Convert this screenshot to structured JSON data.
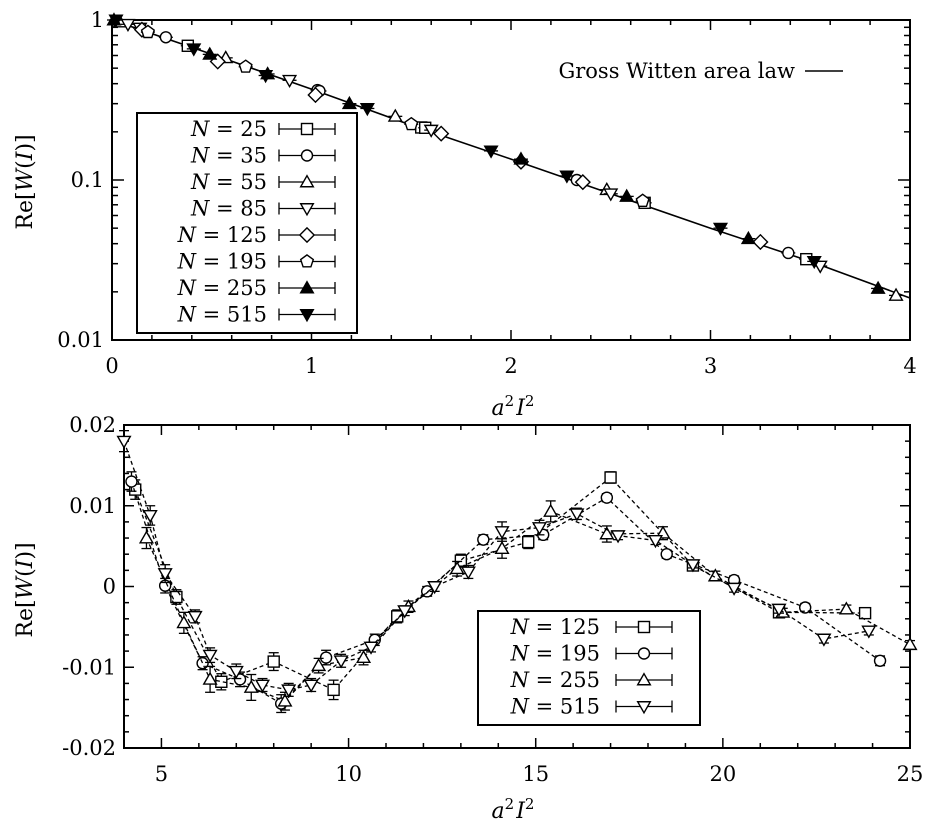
{
  "chart_data": [
    {
      "type": "scatter",
      "log_y": true,
      "xlabel_parts": {
        "base": "a",
        "exp1": "2",
        "mid": "I",
        "exp2": "2"
      },
      "ylabel_parts": {
        "pre": "Re[",
        "italic1": "W",
        "mid": "(",
        "italic2": "I",
        "post": ")]"
      },
      "xlim": [
        0,
        4
      ],
      "ylim": [
        0.01,
        1
      ],
      "x_ticks": [
        "0",
        "1",
        "2",
        "3",
        "4"
      ],
      "x_tick_values": [
        0,
        1,
        2,
        3,
        4
      ],
      "y_ticks": [
        "0.01",
        "0.1",
        "1"
      ],
      "y_tick_values": [
        0.01,
        0.1,
        1
      ],
      "fit": {
        "label": "Gross Witten area law",
        "legend_position": "top-right",
        "x": [
          0,
          0.5,
          1,
          1.5,
          2,
          2.5,
          3,
          3.5,
          4
        ],
        "y": [
          1.0,
          0.61,
          0.37,
          0.22,
          0.135,
          0.082,
          0.05,
          0.031,
          0.0183
        ]
      },
      "legend_position": "bottom-left",
      "series": [
        {
          "name": "N = 25",
          "label_n": "25",
          "marker": "square",
          "x": [
            0.38,
            1.55,
            1.57,
            2.67,
            3.48
          ],
          "y": [
            0.69,
            0.213,
            0.212,
            0.072,
            0.032
          ]
        },
        {
          "name": "N = 35",
          "label_n": "35",
          "marker": "circle",
          "x": [
            0.27,
            1.03,
            1.04,
            2.33,
            3.39
          ],
          "y": [
            0.78,
            0.365,
            0.36,
            0.1,
            0.035
          ]
        },
        {
          "name": "N = 55",
          "label_n": "55",
          "marker": "triangle-up",
          "x": [
            0.04,
            0.57,
            1.42,
            2.48,
            3.93
          ],
          "y": [
            0.97,
            0.58,
            0.25,
            0.087,
            0.019
          ]
        },
        {
          "name": "N = 85",
          "label_n": "85",
          "marker": "triangle-down",
          "x": [
            0.08,
            0.14,
            0.89,
            1.6,
            2.5,
            3.55
          ],
          "y": [
            0.94,
            0.89,
            0.42,
            0.205,
            0.082,
            0.029
          ]
        },
        {
          "name": "N = 125",
          "label_n": "125",
          "marker": "diamond",
          "x": [
            0.15,
            0.53,
            1.02,
            1.65,
            2.05,
            2.36,
            3.25
          ],
          "y": [
            0.87,
            0.55,
            0.34,
            0.195,
            0.13,
            0.097,
            0.041
          ]
        },
        {
          "name": "N = 195",
          "label_n": "195",
          "marker": "pentagon",
          "x": [
            0.18,
            0.67,
            1.5,
            2.66
          ],
          "y": [
            0.84,
            0.51,
            0.223,
            0.074
          ]
        },
        {
          "name": "N = 255",
          "label_n": "255",
          "marker": "filled-triangle-up",
          "x": [
            0.01,
            0.49,
            0.78,
            1.19,
            2.05,
            2.58,
            3.19,
            3.84
          ],
          "y": [
            1.0,
            0.61,
            0.46,
            0.3,
            0.135,
            0.079,
            0.043,
            0.021
          ]
        },
        {
          "name": "N = 515",
          "label_n": "515",
          "marker": "filled-triangle-down",
          "x": [
            0.02,
            0.41,
            0.77,
            1.28,
            1.9,
            2.28,
            3.05,
            3.52
          ],
          "y": [
            1.0,
            0.66,
            0.45,
            0.28,
            0.152,
            0.106,
            0.05,
            0.031
          ]
        }
      ]
    },
    {
      "type": "line",
      "xlabel_parts": {
        "base": "a",
        "exp1": "2",
        "mid": "I",
        "exp2": "2"
      },
      "ylabel_parts": {
        "pre": "Re[",
        "italic1": "W",
        "mid": "(",
        "italic2": "I",
        "post": ")]"
      },
      "xlim": [
        4,
        25
      ],
      "ylim": [
        -0.02,
        0.02
      ],
      "x_ticks": [
        "5",
        "10",
        "15",
        "20",
        "25"
      ],
      "x_tick_values": [
        5,
        10,
        15,
        20,
        25
      ],
      "y_ticks": [
        "-0.02",
        "-0.01",
        "0",
        "0.01",
        "0.02"
      ],
      "y_tick_values": [
        -0.02,
        -0.01,
        0,
        0.01,
        0.02
      ],
      "legend_position": "bottom-right",
      "series": [
        {
          "name": "N = 125",
          "label_n": "125",
          "marker": "square",
          "x": [
            4.3,
            5.4,
            6.6,
            8.0,
            9.6,
            11.3,
            13.0,
            14.8,
            17.0,
            19.2,
            21.5,
            23.8
          ],
          "y": [
            0.012,
            -0.0013,
            -0.0118,
            -0.0093,
            -0.0128,
            -0.0037,
            0.0032,
            0.0055,
            0.0135,
            0.0026,
            -0.0032,
            -0.0033
          ],
          "err": [
            0.0012,
            0.0009,
            0.001,
            0.0011,
            0.0012,
            0.0008,
            0.0008,
            0.0008,
            0.0007,
            0.0005,
            0.0006,
            0.0006
          ]
        },
        {
          "name": "N = 195",
          "label_n": "195",
          "marker": "circle",
          "x": [
            4.2,
            5.1,
            6.1,
            7.1,
            8.2,
            9.4,
            10.7,
            12.1,
            13.6,
            15.2,
            16.9,
            18.5,
            20.3,
            22.2,
            24.2
          ],
          "y": [
            0.013,
            0.0001,
            -0.0095,
            -0.0115,
            -0.0145,
            -0.0088,
            -0.0066,
            -0.0006,
            0.0058,
            0.0064,
            0.011,
            0.004,
            0.0008,
            -0.0026,
            -0.0092
          ],
          "err": [
            0.0012,
            0.0009,
            0.0008,
            0.0009,
            0.0011,
            0.0009,
            0.0007,
            0.0006,
            0.0006,
            0.0006,
            0.0005,
            0.0005,
            0.0005,
            0.0005,
            0.0006
          ]
        },
        {
          "name": "N = 255",
          "label_n": "255",
          "marker": "triangle-up",
          "x": [
            4.6,
            5.6,
            6.3,
            7.4,
            8.3,
            9.2,
            10.4,
            11.6,
            12.9,
            14.1,
            15.4,
            16.9,
            18.4,
            19.8,
            21.6,
            23.3,
            25.0
          ],
          "y": [
            0.006,
            -0.0045,
            -0.0115,
            -0.0125,
            -0.0142,
            -0.0098,
            -0.0088,
            -0.0025,
            0.0022,
            0.0047,
            0.0093,
            0.0065,
            0.0066,
            0.0013,
            -0.0032,
            -0.0028,
            -0.0072
          ],
          "err": [
            0.0013,
            0.0013,
            0.0016,
            0.0016,
            0.0011,
            0.0009,
            0.0009,
            0.0007,
            0.0009,
            0.0012,
            0.0013,
            0.001,
            0.0008,
            0.0006,
            0.0005,
            0.0005,
            0.0005
          ]
        },
        {
          "name": "N = 515",
          "label_n": "515",
          "marker": "triangle-down",
          "x": [
            4.0,
            4.7,
            5.1,
            5.9,
            6.3,
            7.0,
            7.7,
            8.4,
            9.0,
            9.8,
            10.6,
            11.5,
            12.3,
            13.2,
            14.1,
            15.1,
            16.1,
            17.2,
            18.2,
            19.2,
            20.3,
            21.5,
            22.7,
            23.9
          ],
          "y": [
            0.018,
            0.0088,
            0.0016,
            -0.0037,
            -0.0085,
            -0.0105,
            -0.0122,
            -0.0128,
            -0.0122,
            -0.0092,
            -0.0075,
            -0.003,
            0.0,
            0.0018,
            0.0068,
            0.0073,
            0.009,
            0.0063,
            0.0057,
            0.0027,
            -0.0002,
            -0.0028,
            -0.0065,
            -0.0055
          ],
          "err": [
            0.0013,
            0.0012,
            0.0011,
            0.0008,
            0.0009,
            0.0009,
            0.0008,
            0.0008,
            0.0008,
            0.0008,
            0.0006,
            0.0006,
            0.0006,
            0.0008,
            0.0012,
            0.0009,
            0.0007,
            0.0005,
            0.0005,
            0.0004,
            0.0005,
            0.0005,
            0.0005,
            0.0005
          ]
        }
      ]
    }
  ]
}
